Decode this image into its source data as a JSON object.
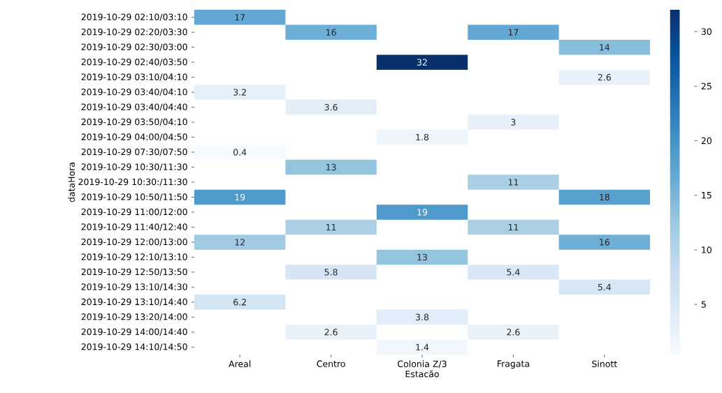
{
  "chart_data": {
    "type": "heatmap",
    "xlabel": "Estacão",
    "ylabel": "dataHora",
    "categories": [
      "Areal",
      "Centro",
      "Colonia Z/3",
      "Fragata",
      "Sinott"
    ],
    "y_categories": [
      "2019-10-29 02:10/03:10",
      "2019-10-29 02:20/03:30",
      "2019-10-29 02:30/03:00",
      "2019-10-29 02:40/03:50",
      "2019-10-29 03:10/04:10",
      "2019-10-29 03:40/04:10",
      "2019-10-29 03:40/04:40",
      "2019-10-29 03:50/04:10",
      "2019-10-29 04:00/04:50",
      "2019-10-29 07:30/07:50",
      "2019-10-29 10:30/11:30",
      "2019-10-29 10:30:/11:30",
      "2019-10-29 10:50/11:50",
      "2019-10-29 11:00/12:00",
      "2019-10-29 11:40/12:40",
      "2019-10-29 12:00/13:00",
      "2019-10-29 12:10/13:10",
      "2019-10-29 12:50/13:50",
      "2019-10-29 13:10/14:30",
      "2019-10-29 13:10/14:40",
      "2019-10-29 13:20/14:00",
      "2019-10-29 14:00/14:40",
      "2019-10-29 14:10/14:50"
    ],
    "cells": [
      [
        17,
        null,
        null,
        null,
        null
      ],
      [
        null,
        16,
        null,
        17,
        null
      ],
      [
        null,
        null,
        null,
        null,
        14
      ],
      [
        null,
        null,
        32,
        null,
        null
      ],
      [
        null,
        null,
        null,
        null,
        2.6
      ],
      [
        3.2,
        null,
        null,
        null,
        null
      ],
      [
        null,
        3.6,
        null,
        null,
        null
      ],
      [
        null,
        null,
        null,
        3,
        null
      ],
      [
        null,
        null,
        1.8,
        null,
        null
      ],
      [
        0.4,
        null,
        null,
        null,
        null
      ],
      [
        null,
        13,
        null,
        null,
        null
      ],
      [
        null,
        null,
        null,
        11,
        null
      ],
      [
        19,
        null,
        null,
        null,
        18
      ],
      [
        null,
        null,
        19,
        null,
        null
      ],
      [
        null,
        11,
        null,
        11,
        null
      ],
      [
        12,
        null,
        null,
        null,
        16
      ],
      [
        null,
        null,
        13,
        null,
        null
      ],
      [
        null,
        5.8,
        null,
        5.4,
        null
      ],
      [
        null,
        null,
        null,
        null,
        5.4
      ],
      [
        6.2,
        null,
        null,
        null,
        null
      ],
      [
        null,
        null,
        3.8,
        null,
        null
      ],
      [
        null,
        2.6,
        null,
        2.6,
        null
      ],
      [
        null,
        null,
        1.4,
        null,
        null
      ]
    ],
    "clim": [
      0.4,
      32
    ],
    "cticks": [
      5,
      10,
      15,
      20,
      25,
      30
    ],
    "data_labels": true
  }
}
